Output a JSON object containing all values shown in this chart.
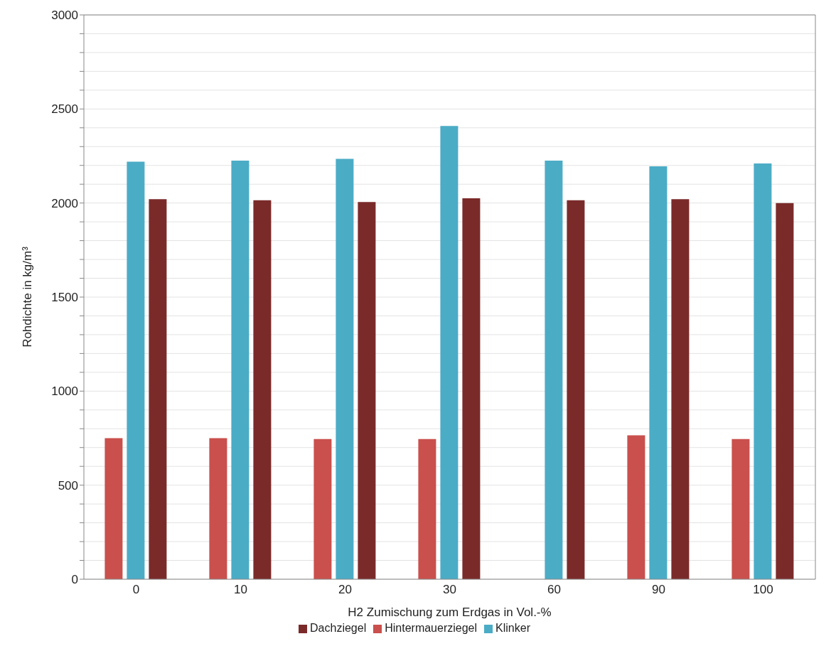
{
  "chart_data": {
    "type": "bar",
    "xlabel": "H2 Zumischung zum Erdgas in Vol.-%",
    "ylabel": "Rohdichte in kg/m³",
    "categories": [
      "0",
      "10",
      "20",
      "30",
      "60",
      "90",
      "100"
    ],
    "series": [
      {
        "name": "Hintermauerziegel",
        "color": "#c9504d",
        "values": [
          750,
          750,
          745,
          745,
          null,
          765,
          745
        ]
      },
      {
        "name": "Klinker",
        "color": "#4bacc6",
        "values": [
          2220,
          2225,
          2235,
          2410,
          2225,
          2195,
          2210
        ]
      },
      {
        "name": "Dachziegel",
        "color": "#7b2a2a",
        "values": [
          2020,
          2015,
          2005,
          2025,
          2015,
          2020,
          2000
        ]
      }
    ],
    "ylim": [
      0,
      3000
    ],
    "yticks": [
      0,
      {
        "value": 100,
        "label": null
      },
      {
        "value": 200,
        "label": null
      },
      {
        "value": 300,
        "label": null
      },
      {
        "value": 400,
        "label": null
      },
      500,
      {
        "value": 600,
        "label": null
      },
      {
        "value": 700,
        "label": null
      },
      {
        "value": 800,
        "label": null
      },
      {
        "value": 900,
        "label": null
      },
      1000,
      {
        "value": 1100,
        "label": null
      },
      {
        "value": 1200,
        "label": null
      },
      {
        "value": 1300,
        "label": null
      },
      {
        "value": 1400,
        "label": null
      },
      1500,
      {
        "value": 1600,
        "label": null
      },
      {
        "value": 1700,
        "label": null
      },
      {
        "value": 1800,
        "label": null
      },
      {
        "value": 1900,
        "label": null
      },
      2000,
      {
        "value": 2100,
        "label": null
      },
      {
        "value": 2200,
        "label": null
      },
      {
        "value": 2300,
        "label": null
      },
      {
        "value": 2400,
        "label": null
      },
      2500,
      {
        "value": 2600,
        "label": null
      },
      {
        "value": 2700,
        "label": null
      },
      {
        "value": 2800,
        "label": null
      },
      {
        "value": 2900,
        "label": null
      },
      3000
    ],
    "grid": "y",
    "legend": "bottom"
  }
}
